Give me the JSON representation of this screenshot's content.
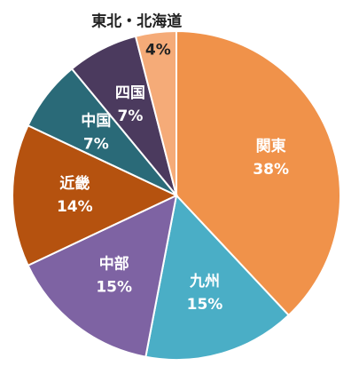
{
  "chart_data": {
    "type": "pie",
    "categories": [
      "関東",
      "九州",
      "中部",
      "近畿",
      "中国",
      "四国",
      "東北・北海道"
    ],
    "values": [
      38,
      15,
      15,
      14,
      7,
      7,
      4
    ],
    "value_labels": [
      "38%",
      "15%",
      "15%",
      "14%",
      "7%",
      "7%",
      "4%"
    ],
    "colors": [
      "#f0924a",
      "#4aaec6",
      "#7e63a3",
      "#b5520f",
      "#2a6a78",
      "#4b3a5e",
      "#f5ab78"
    ]
  }
}
